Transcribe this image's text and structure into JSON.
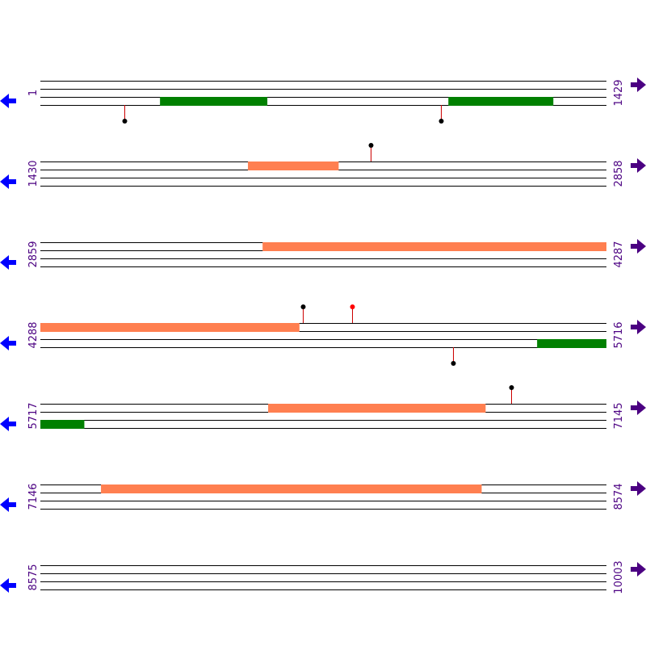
{
  "colors": {
    "line": "#000000",
    "forward_feature": "#ff7f50",
    "reverse_feature": "#008000",
    "marker_stem": "#cc0000",
    "marker_black": "#000000",
    "marker_red": "#ff0000",
    "label": "#4b0082",
    "left_arrow": "#0000ff",
    "right_arrow": "#4b0082"
  },
  "icons": {
    "left": "arrow-left-icon",
    "right": "arrow-right-icon"
  },
  "rows": [
    {
      "start": "1",
      "end": "1429",
      "from": 1,
      "to": 1429,
      "features": [
        {
          "strand": "reverse",
          "lane": 2,
          "start": 303,
          "end": 573
        },
        {
          "strand": "reverse",
          "lane": 2,
          "start": 1031,
          "end": 1295
        }
      ],
      "markers": [
        {
          "pos": 213,
          "side": "below",
          "color": "black"
        },
        {
          "pos": 1013,
          "side": "below",
          "color": "black"
        }
      ]
    },
    {
      "start": "1430",
      "end": "2858",
      "from": 1430,
      "to": 2858,
      "features": [
        {
          "strand": "forward",
          "lane": 0,
          "start": 1954,
          "end": 2182
        }
      ],
      "markers": [
        {
          "pos": 2264,
          "side": "above",
          "color": "black"
        }
      ]
    },
    {
      "start": "2859",
      "end": "4287",
      "from": 2859,
      "to": 4287,
      "features": [
        {
          "strand": "forward",
          "lane": 0,
          "start": 3420,
          "end": 4287
        }
      ],
      "markers": []
    },
    {
      "start": "4288",
      "end": "5716",
      "from": 4288,
      "to": 5716,
      "features": [
        {
          "strand": "forward",
          "lane": 0,
          "start": 4288,
          "end": 4941
        },
        {
          "strand": "reverse",
          "lane": 2,
          "start": 5542,
          "end": 5716
        }
      ],
      "markers": [
        {
          "pos": 4950,
          "side": "above",
          "color": "black"
        },
        {
          "pos": 5075,
          "side": "above",
          "color": "red"
        },
        {
          "pos": 5330,
          "side": "below",
          "color": "black"
        }
      ]
    },
    {
      "start": "5717",
      "end": "7145",
      "from": 5717,
      "to": 7145,
      "features": [
        {
          "strand": "forward",
          "lane": 0,
          "start": 6292,
          "end": 6840
        },
        {
          "strand": "reverse",
          "lane": 2,
          "start": 5717,
          "end": 5827
        }
      ],
      "markers": [
        {
          "pos": 6905,
          "side": "above",
          "color": "black"
        }
      ]
    },
    {
      "start": "7146",
      "end": "8574",
      "from": 7146,
      "to": 8574,
      "features": [
        {
          "strand": "forward",
          "lane": 0,
          "start": 7299,
          "end": 8259
        }
      ],
      "markers": []
    },
    {
      "start": "8575",
      "end": "10003",
      "from": 8575,
      "to": 10003,
      "features": [],
      "markers": []
    }
  ]
}
